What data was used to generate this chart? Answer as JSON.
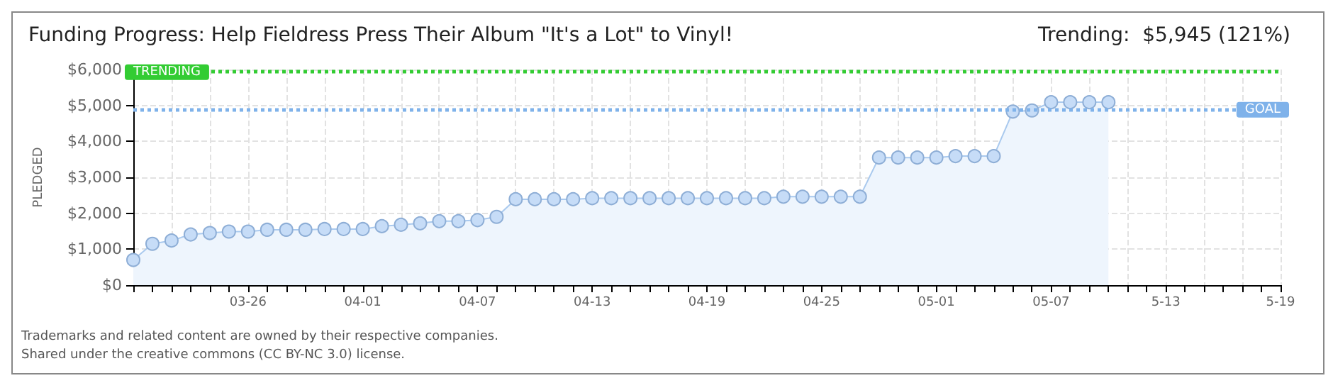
{
  "chart_data": {
    "type": "area",
    "title": "Funding Progress: Help Fieldress Press Their Album \"It's a Lot\" to Vinyl!",
    "subtitle": "Trending:  $5,945 (121%)",
    "ylabel": "PLEDGED",
    "categories": [
      null,
      null,
      null,
      null,
      null,
      null,
      "03-26",
      null,
      null,
      null,
      null,
      null,
      "04-01",
      null,
      null,
      null,
      null,
      null,
      "04-07",
      null,
      null,
      null,
      null,
      null,
      "04-13",
      null,
      null,
      null,
      null,
      null,
      "04-19",
      null,
      null,
      null,
      null,
      null,
      "04-25",
      null,
      null,
      null,
      null,
      null,
      "05-01",
      null,
      null,
      null,
      null,
      null,
      "05-07",
      null,
      null,
      null,
      null,
      null,
      "5-13",
      null,
      null,
      null,
      null,
      null,
      "5-19"
    ],
    "series": [
      {
        "color": "#c6dcf7",
        "values": [
          700,
          1150,
          1240,
          1410,
          1450,
          1490,
          1490,
          1540,
          1540,
          1540,
          1560,
          1560,
          1560,
          1640,
          1680,
          1720,
          1780,
          1780,
          1810,
          1900,
          2390,
          2390,
          2390,
          2390,
          2420,
          2420,
          2420,
          2420,
          2420,
          2420,
          2420,
          2420,
          2420,
          2420,
          2460,
          2460,
          2460,
          2460,
          2460,
          3550,
          3550,
          3550,
          3550,
          3590,
          3590,
          3590,
          4830,
          4860,
          5090,
          5090,
          5090,
          5090,
          null,
          null,
          null,
          null,
          null,
          null,
          null,
          null,
          null
        ]
      }
    ],
    "ylim": [
      0,
      6000
    ],
    "yticks": [
      {
        "value": 0,
        "label": "$0"
      },
      {
        "value": 1000,
        "label": "$1,000"
      },
      {
        "value": 2000,
        "label": "$2,000"
      },
      {
        "value": 3000,
        "label": "$3,000"
      },
      {
        "value": 4000,
        "label": "$4,000"
      },
      {
        "value": 5000,
        "label": "$5,000"
      },
      {
        "value": 6000,
        "label": "$6,000"
      }
    ],
    "ref_lines": [
      {
        "axis": "y",
        "value": 5945,
        "label": "TRENDING",
        "color": "#33cc33",
        "line_style": "dotted"
      },
      {
        "axis": "y",
        "value": 4900,
        "label": "GOAL",
        "color": "#7fb2ea",
        "line_style": "dotted"
      }
    ],
    "grid": true,
    "marker": "circle",
    "annotations": [
      "Trademarks and related content are owned by their respective companies.",
      "Shared under the creative commons (CC BY-NC 3.0) license."
    ]
  }
}
